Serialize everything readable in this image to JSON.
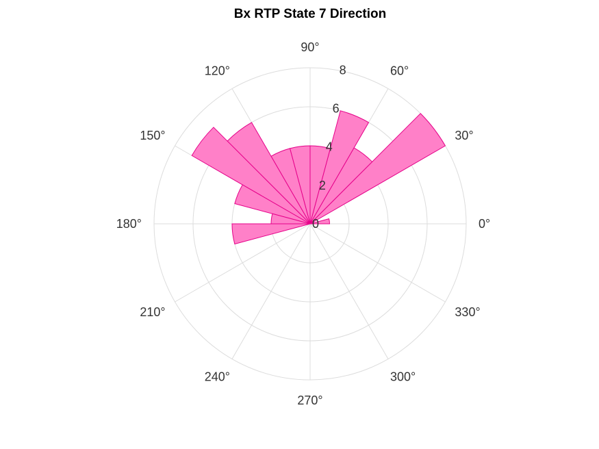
{
  "chart_data": {
    "type": "polar-histogram",
    "title": "Bx  RTP State 7 Direction",
    "bin_width_deg": 15,
    "bins": [
      {
        "start": 0,
        "value": 1
      },
      {
        "start": 15,
        "value": 0
      },
      {
        "start": 30,
        "value": 8
      },
      {
        "start": 45,
        "value": 4.5
      },
      {
        "start": 60,
        "value": 6
      },
      {
        "start": 75,
        "value": 4
      },
      {
        "start": 90,
        "value": 4
      },
      {
        "start": 105,
        "value": 4
      },
      {
        "start": 120,
        "value": 6
      },
      {
        "start": 135,
        "value": 7
      },
      {
        "start": 150,
        "value": 4
      },
      {
        "start": 165,
        "value": 2
      },
      {
        "start": 180,
        "value": 4
      },
      {
        "start": 195,
        "value": 0
      },
      {
        "start": 210,
        "value": 0
      },
      {
        "start": 225,
        "value": 0
      },
      {
        "start": 240,
        "value": 0
      },
      {
        "start": 255,
        "value": 0
      },
      {
        "start": 270,
        "value": 0
      },
      {
        "start": 285,
        "value": 0
      },
      {
        "start": 300,
        "value": 0
      },
      {
        "start": 315,
        "value": 0
      },
      {
        "start": 330,
        "value": 0
      },
      {
        "start": 345,
        "value": 0
      }
    ],
    "rlim": [
      0,
      8
    ],
    "r_ticks": [
      "0",
      "2",
      "4",
      "6",
      "8"
    ],
    "theta_ticks": [
      "0°",
      "30°",
      "60°",
      "90°",
      "120°",
      "150°",
      "180°",
      "210°",
      "240°",
      "270°",
      "300°",
      "330°"
    ],
    "grid": true,
    "colors": {
      "fill": "#ff80c8",
      "edge": "#e6008a",
      "grid": "#dcdcdc"
    }
  }
}
